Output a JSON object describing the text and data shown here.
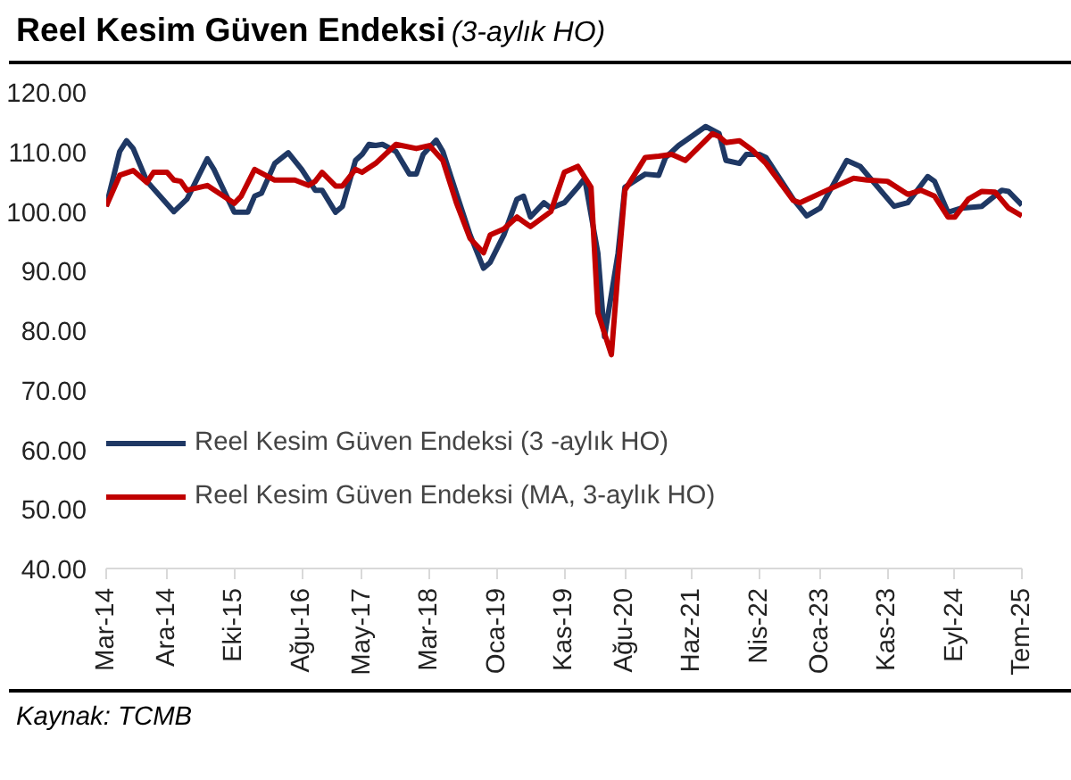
{
  "chart_data": {
    "type": "line",
    "title": "Reel Kesim Güven Endeksi",
    "subtitle": "(3-aylık HO)",
    "annotations": [
      "Kaynak: TCMB"
    ],
    "series": [
      {
        "name": "Reel Kesim Güven Endeksi (3 -aylık HO)",
        "color": "#1f3864",
        "x": [
          "2014-03",
          "2014-05",
          "2014-06",
          "2014-07",
          "2014-09",
          "2015-01",
          "2015-03",
          "2015-06",
          "2015-07",
          "2015-10",
          "2015-12",
          "2016-01",
          "2016-02",
          "2016-04",
          "2016-06",
          "2016-08",
          "2016-10",
          "2016-11",
          "2017-01",
          "2017-02",
          "2017-04",
          "2017-05",
          "2017-06",
          "2017-07",
          "2017-08",
          "2017-10",
          "2017-12",
          "2018-01",
          "2018-02",
          "2018-04",
          "2018-05",
          "2018-07",
          "2018-09",
          "2018-11",
          "2018-12",
          "2019-02",
          "2019-04",
          "2019-05",
          "2019-06",
          "2019-08",
          "2019-09",
          "2019-11",
          "2020-01",
          "2020-02",
          "2020-04",
          "2020-05",
          "2020-07",
          "2020-08",
          "2020-11",
          "2021-01",
          "2021-02",
          "2021-04",
          "2021-08",
          "2021-10",
          "2021-11",
          "2022-01",
          "2022-02",
          "2022-04",
          "2022-05",
          "2022-09",
          "2022-11",
          "2023-01",
          "2023-05",
          "2023-07",
          "2023-12",
          "2024-02",
          "2024-05",
          "2024-06",
          "2024-08",
          "2024-10",
          "2025-01",
          "2025-04",
          "2025-05",
          "2025-07"
        ],
        "values": [
          100.8,
          110.0,
          111.8,
          110.5,
          105,
          99.9,
          102,
          108.8,
          107,
          99.8,
          99.8,
          102.5,
          103,
          108,
          109.8,
          107,
          103.5,
          103.5,
          99.8,
          100.8,
          108.5,
          109.5,
          111.2,
          111,
          111.2,
          110,
          106.2,
          106.2,
          109.5,
          111.9,
          110,
          103,
          96,
          90.4,
          91.4,
          96,
          102,
          102.5,
          99,
          101.4,
          100.5,
          101.4,
          104,
          105.5,
          92.9,
          78.9,
          92.9,
          104,
          106.2,
          106,
          109,
          111,
          114.2,
          113,
          108.5,
          108,
          109.5,
          109.5,
          109,
          102,
          99.2,
          100.5,
          108.5,
          107.5,
          100.8,
          101.4,
          105.8,
          105,
          99.8,
          100.5,
          100.8,
          103.5,
          103.3,
          101
        ]
      },
      {
        "name": "Reel Kesim Güven Endeksi (MA, 3-aylık HO)",
        "color": "#c00000",
        "x": [
          "2014-03",
          "2014-05",
          "2014-07",
          "2014-09",
          "2014-10",
          "2014-12",
          "2015-01",
          "2015-02",
          "2015-03",
          "2015-06",
          "2015-10",
          "2015-11",
          "2016-01",
          "2016-04",
          "2016-07",
          "2016-09",
          "2016-10",
          "2016-11",
          "2017-01",
          "2017-02",
          "2017-04",
          "2017-05",
          "2017-07",
          "2017-10",
          "2018-01",
          "2018-03",
          "2018-05",
          "2018-07",
          "2018-09",
          "2018-11",
          "2018-12",
          "2019-02",
          "2019-04",
          "2019-06",
          "2019-09",
          "2019-11",
          "2020-01",
          "2020-03",
          "2020-04",
          "2020-06",
          "2020-07",
          "2020-08",
          "2020-11",
          "2021-01",
          "2021-03",
          "2021-05",
          "2021-09",
          "2021-10",
          "2021-11",
          "2022-01",
          "2022-03",
          "2022-05",
          "2022-09",
          "2022-10",
          "2023-02",
          "2023-06",
          "2023-08",
          "2023-11",
          "2024-02",
          "2024-04",
          "2024-06",
          "2024-08",
          "2024-09",
          "2024-11",
          "2025-01",
          "2025-03",
          "2025-05",
          "2025-07"
        ],
        "values": [
          100.8,
          106,
          106.8,
          104.8,
          106.5,
          106.5,
          105.2,
          105,
          103.5,
          104.3,
          101.3,
          102.5,
          107,
          105.2,
          105.2,
          104.3,
          105,
          106.5,
          104.2,
          104.2,
          107,
          106.5,
          108,
          111.2,
          110.5,
          111,
          108.5,
          101.4,
          95.4,
          93,
          96,
          97,
          99,
          97.4,
          99.9,
          106.5,
          107.5,
          104,
          82.9,
          75.9,
          89.9,
          103.5,
          109,
          109.2,
          109.5,
          108.5,
          113,
          112.5,
          111.5,
          111.8,
          110.2,
          108,
          101.8,
          101.4,
          103.5,
          105.5,
          105.2,
          105,
          102.8,
          103.5,
          102.5,
          99,
          99,
          102,
          103.3,
          103.2,
          100.5,
          99.2
        ]
      }
    ],
    "xlim": [
      "2014-03",
      "2025-07"
    ],
    "xticks": [
      {
        "value": "2014-03",
        "label": "Mar-14"
      },
      {
        "value": "2014-12",
        "label": "Ara-14"
      },
      {
        "value": "2015-10",
        "label": "Eki-15"
      },
      {
        "value": "2016-08",
        "label": "Ağu-16"
      },
      {
        "value": "2017-05",
        "label": "May-17"
      },
      {
        "value": "2018-03",
        "label": "Mar-18"
      },
      {
        "value": "2019-01",
        "label": "Oca-19"
      },
      {
        "value": "2019-11",
        "label": "Kas-19"
      },
      {
        "value": "2020-08",
        "label": "Ağu-20"
      },
      {
        "value": "2021-06",
        "label": "Haz-21"
      },
      {
        "value": "2022-04",
        "label": "Nis-22"
      },
      {
        "value": "2023-01",
        "label": "Oca-23"
      },
      {
        "value": "2023-11",
        "label": "Kas-23"
      },
      {
        "value": "2024-09",
        "label": "Eyl-24"
      },
      {
        "value": "2025-07",
        "label": "Tem-25"
      }
    ],
    "ylim": [
      40,
      120
    ],
    "yticks": [
      {
        "value": 40,
        "label": "40.00"
      },
      {
        "value": 50,
        "label": "50.00"
      },
      {
        "value": 60,
        "label": "60.00"
      },
      {
        "value": 70,
        "label": "70.00"
      },
      {
        "value": 80,
        "label": "80.00"
      },
      {
        "value": 90,
        "label": "90.00"
      },
      {
        "value": 100,
        "label": "100.00"
      },
      {
        "value": 110,
        "label": "110.00"
      },
      {
        "value": 120,
        "label": "120.00"
      }
    ],
    "grid": false,
    "legend": "left",
    "line_style": "solid"
  }
}
